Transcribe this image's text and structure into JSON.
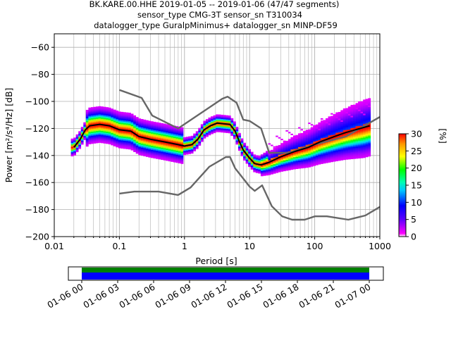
{
  "chart_data": {
    "type": "heatmap",
    "title_lines": [
      "BK.KARE.00.HHE   2019-01-05 -- 2019-01-06  (47/47 segments)",
      "sensor_type CMG-3T sensor_sn T310034",
      "datalogger_type GuralpMinimus+ datalogger_sn MINP-DF59"
    ],
    "xlabel": "Period [s]",
    "ylabel": "Power [m²/s⁴/Hz] [dB]",
    "x_scale": "log",
    "xlim": [
      0.01,
      1000
    ],
    "ylim": [
      -200,
      -50
    ],
    "x_tick_labels": [
      "0.01",
      "0.1",
      "1",
      "10",
      "100",
      "1000"
    ],
    "y_ticks": [
      -200,
      -180,
      -160,
      -140,
      -120,
      -100,
      -80,
      -60
    ],
    "grid": true,
    "colorbar": {
      "label": "[%]",
      "ticks": [
        0,
        5,
        10,
        15,
        20,
        25,
        30
      ],
      "range": [
        0,
        30
      ]
    },
    "series": [
      {
        "name": "",
        "role": "upper noise model",
        "color": "#666666",
        "points": [
          [
            0.1,
            -91.5
          ],
          [
            0.22,
            -97.4
          ],
          [
            0.32,
            -110.5
          ],
          [
            0.8,
            -120
          ],
          [
            3.8,
            -98
          ],
          [
            4.6,
            -96.5
          ],
          [
            6.3,
            -101
          ],
          [
            8,
            -113.5
          ],
          [
            10,
            -114.5
          ],
          [
            15,
            -120
          ],
          [
            20,
            -138
          ],
          [
            40,
            -138
          ],
          [
            100,
            -132
          ],
          [
            300,
            -126
          ],
          [
            1000,
            -111.5
          ]
        ]
      },
      {
        "name": "",
        "role": "lower noise model",
        "color": "#666666",
        "points": [
          [
            0.1,
            -168.2
          ],
          [
            0.17,
            -166.7
          ],
          [
            0.4,
            -166.7
          ],
          [
            0.8,
            -169.2
          ],
          [
            1.24,
            -163.7
          ],
          [
            2.4,
            -148.4
          ],
          [
            4.3,
            -141.2
          ],
          [
            5.0,
            -141.1
          ],
          [
            6.0,
            -149.5
          ],
          [
            10.0,
            -163
          ],
          [
            12.0,
            -166.2
          ],
          [
            15.6,
            -162.1
          ],
          [
            21.9,
            -177.5
          ],
          [
            31.6,
            -185
          ],
          [
            45,
            -187.5
          ],
          [
            70,
            -187.5
          ],
          [
            101,
            -185
          ],
          [
            154,
            -185
          ],
          [
            328,
            -187.5
          ],
          [
            600,
            -184.4
          ],
          [
            1000,
            -178
          ]
        ]
      },
      {
        "name": "",
        "role": "mean",
        "color": "#000000",
        "points": [
          [
            0.02,
            -134
          ],
          [
            0.025,
            -128
          ],
          [
            0.03,
            -121
          ],
          [
            0.035,
            -118
          ],
          [
            0.05,
            -117
          ],
          [
            0.07,
            -118
          ],
          [
            0.1,
            -121
          ],
          [
            0.15,
            -122
          ],
          [
            0.2,
            -126
          ],
          [
            0.3,
            -128
          ],
          [
            0.5,
            -130
          ],
          [
            0.8,
            -132
          ],
          [
            1.0,
            -133
          ],
          [
            1.3,
            -132
          ],
          [
            1.6,
            -128
          ],
          [
            2.0,
            -121
          ],
          [
            2.5,
            -118
          ],
          [
            3.2,
            -116
          ],
          [
            4.0,
            -116.5
          ],
          [
            5.0,
            -117
          ],
          [
            6.0,
            -122
          ],
          [
            7.0,
            -130
          ],
          [
            8.0,
            -136
          ],
          [
            10.0,
            -142
          ],
          [
            12.0,
            -146
          ],
          [
            15.0,
            -147
          ],
          [
            20.0,
            -145
          ],
          [
            30.0,
            -141
          ],
          [
            50.0,
            -137
          ],
          [
            80.0,
            -134
          ],
          [
            120.0,
            -130
          ],
          [
            200.0,
            -126
          ],
          [
            300.0,
            -123
          ],
          [
            500.0,
            -120
          ],
          [
            700.0,
            -118
          ]
        ]
      }
    ],
    "timeline": {
      "tick_labels": [
        "01-06 00",
        "01-06 03",
        "01-06 06",
        "01-06 09",
        "01-06 12",
        "01-06 15",
        "01-06 18",
        "01-06 21",
        "01-07 00"
      ],
      "bands": [
        {
          "color": "#008000"
        },
        {
          "color": "#0000ff"
        }
      ]
    }
  }
}
